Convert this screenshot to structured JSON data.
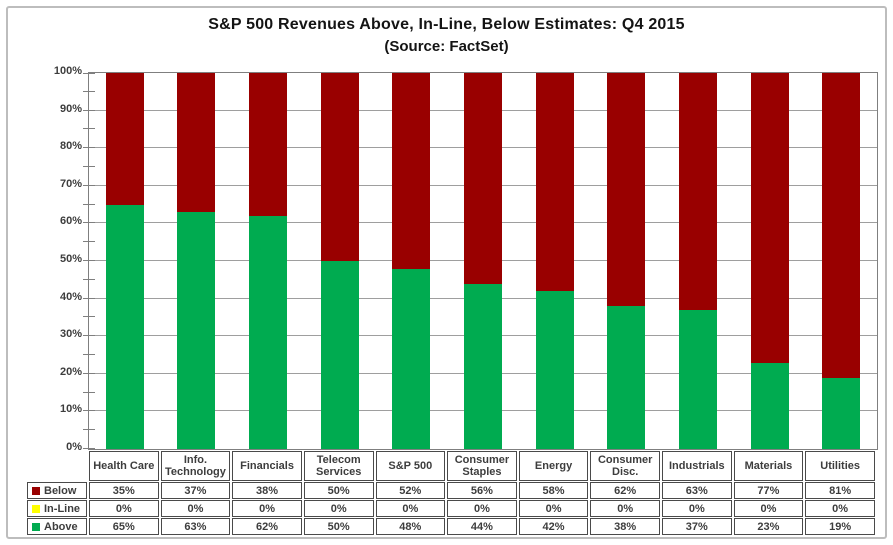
{
  "chart": {
    "title": "S&P 500 Revenues Above, In-Line, Below Estimates: Q4 2015",
    "subtitle": "(Source: FactSet)"
  },
  "chart_data": {
    "type": "bar",
    "stacked": true,
    "title": "S&P 500 Revenues Above, In-Line, Below Estimates: Q4 2015",
    "subtitle": "(Source: FactSet)",
    "categories": [
      "Health Care",
      "Info. Technology",
      "Financials",
      "Telecom Services",
      "S&P 500",
      "Consumer Staples",
      "Energy",
      "Consumer Disc.",
      "Industrials",
      "Materials",
      "Utilities"
    ],
    "series": [
      {
        "name": "Below",
        "color": "#990000",
        "values": [
          35,
          37,
          38,
          50,
          52,
          56,
          58,
          62,
          63,
          77,
          81
        ]
      },
      {
        "name": "In-Line",
        "color": "#ffff00",
        "values": [
          0,
          0,
          0,
          0,
          0,
          0,
          0,
          0,
          0,
          0,
          0
        ]
      },
      {
        "name": "Above",
        "color": "#00ab50",
        "values": [
          65,
          63,
          62,
          50,
          48,
          44,
          42,
          38,
          37,
          23,
          19
        ]
      }
    ],
    "value_suffix": "%",
    "ylim": [
      0,
      100
    ],
    "ytick_step": 10,
    "ytick_minor_step": 5,
    "ytick_labels": [
      "0%",
      "10%",
      "20%",
      "30%",
      "40%",
      "50%",
      "60%",
      "70%",
      "80%",
      "90%",
      "100%"
    ],
    "grid": true,
    "gridline_color": "#9e9e9e",
    "axis_color": "#7f7f7f",
    "text_color": "#3d3d3d",
    "legend_position": "table-left",
    "data_table": true
  }
}
